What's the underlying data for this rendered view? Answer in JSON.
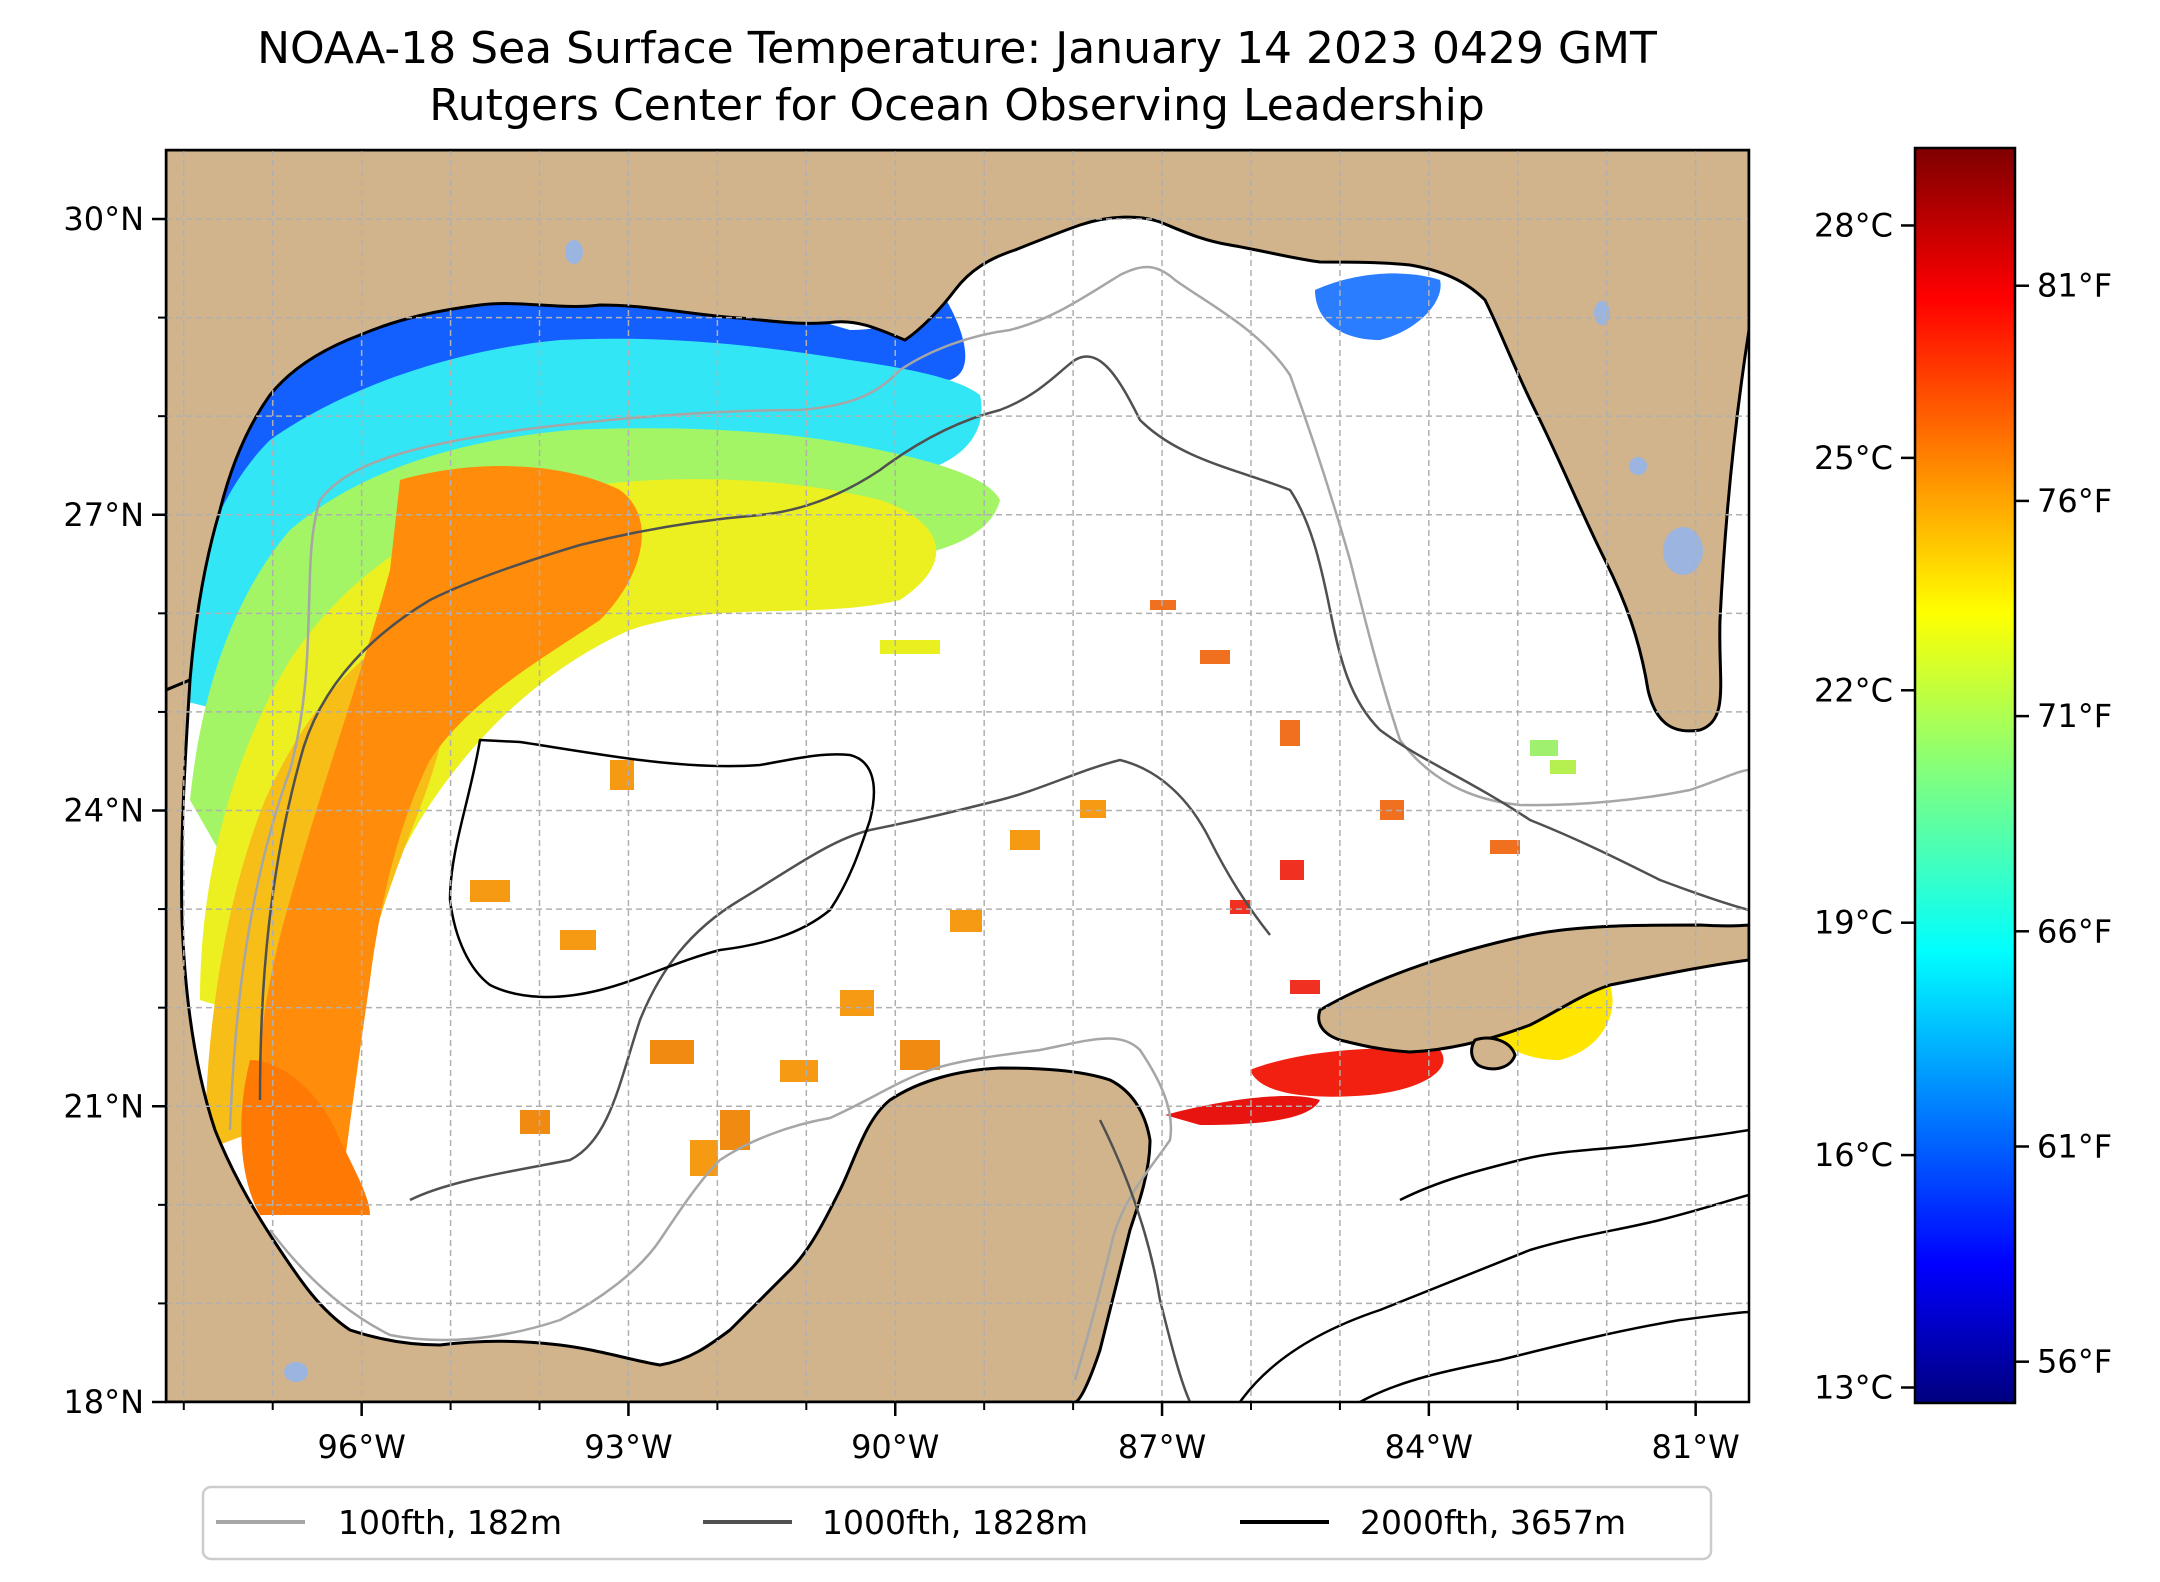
{
  "title": {
    "line1": "NOAA-18 Sea Surface Temperature: January 14 2023 0429 GMT",
    "line2": "Rutgers Center for Ocean Observing Leadership"
  },
  "map": {
    "projection": "lat-lon",
    "lon_range": [
      -98.2,
      -80.4
    ],
    "lat_range": [
      18.0,
      30.7
    ],
    "gridlines": true,
    "lat_ticks": [
      {
        "value": 30,
        "label": "30°N"
      },
      {
        "value": 27,
        "label": "27°N"
      },
      {
        "value": 24,
        "label": "24°N"
      },
      {
        "value": 21,
        "label": "21°N"
      },
      {
        "value": 18,
        "label": "18°N"
      }
    ],
    "lon_ticks": [
      {
        "value": -96,
        "label": "96°W"
      },
      {
        "value": -93,
        "label": "93°W"
      },
      {
        "value": -90,
        "label": "90°W"
      },
      {
        "value": -87,
        "label": "87°W"
      },
      {
        "value": -84,
        "label": "84°W"
      },
      {
        "value": -81,
        "label": "81°W"
      }
    ],
    "colors": {
      "land": "#d2b48c",
      "lakes": "#9bb4e0",
      "ocean_no_data": "#ffffff",
      "grid": "#b0b0b0"
    }
  },
  "colorbar": {
    "colormap": "jet",
    "range_c": [
      12.8,
      29.0
    ],
    "celsius_ticks": [
      {
        "value": 28,
        "label": "28°C"
      },
      {
        "value": 25,
        "label": "25°C"
      },
      {
        "value": 22,
        "label": "22°C"
      },
      {
        "value": 19,
        "label": "19°C"
      },
      {
        "value": 16,
        "label": "16°C"
      },
      {
        "value": 13,
        "label": "13°C"
      }
    ],
    "fahrenheit_ticks": [
      {
        "value": 81,
        "label": "81°F"
      },
      {
        "value": 76,
        "label": "76°F"
      },
      {
        "value": 71,
        "label": "71°F"
      },
      {
        "value": 66,
        "label": "66°F"
      },
      {
        "value": 61,
        "label": "61°F"
      },
      {
        "value": 56,
        "label": "56°F"
      }
    ]
  },
  "legend": {
    "placement": "bottom",
    "items": [
      {
        "label": "100fth, 182m",
        "color": "#a6a6a6"
      },
      {
        "label": "1000fth, 1828m",
        "color": "#505050"
      },
      {
        "label": "2000fth, 3657m",
        "color": "#000000"
      }
    ]
  }
}
